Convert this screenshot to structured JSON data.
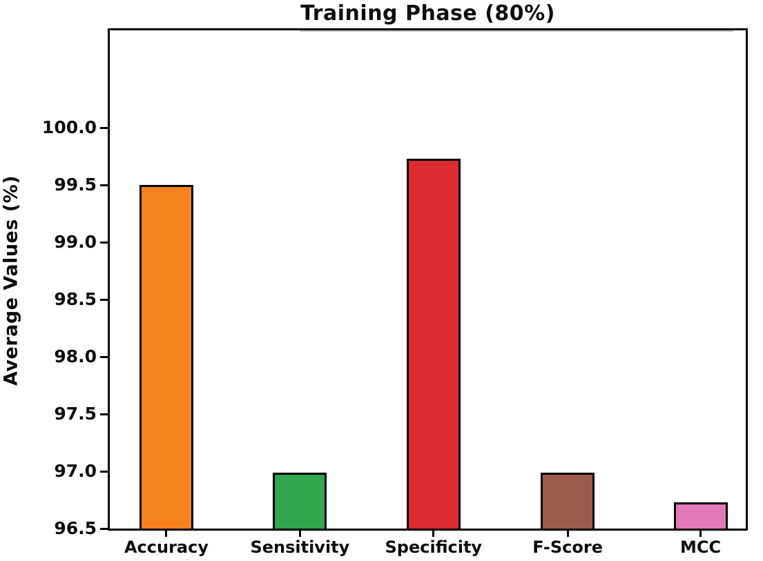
{
  "figure": {
    "background": "#ffffff"
  },
  "chart_data": {
    "type": "bar",
    "title": "Training Phase (80%)",
    "xlabel": "",
    "ylabel": "Average Values (%)",
    "categories": [
      "Accuracy",
      "Sensitivity",
      "Specificity",
      "F-Score",
      "MCC"
    ],
    "values": [
      99.5,
      96.99,
      99.73,
      96.99,
      96.73
    ],
    "bar_colors": [
      "#f5821f",
      "#31a64e",
      "#dc2b2e",
      "#9d5b50",
      "#e479b7"
    ],
    "bar_edge_color": "#000000",
    "ylim": [
      96.5,
      100.85
    ],
    "yticks": [
      "96.5",
      "97.0",
      "97.5",
      "98.0",
      "98.5",
      "99.0",
      "99.5",
      "100.0"
    ],
    "grid": false,
    "legend_position": "none",
    "axis_color": "#000000",
    "text_color": "#0d0d0d"
  }
}
